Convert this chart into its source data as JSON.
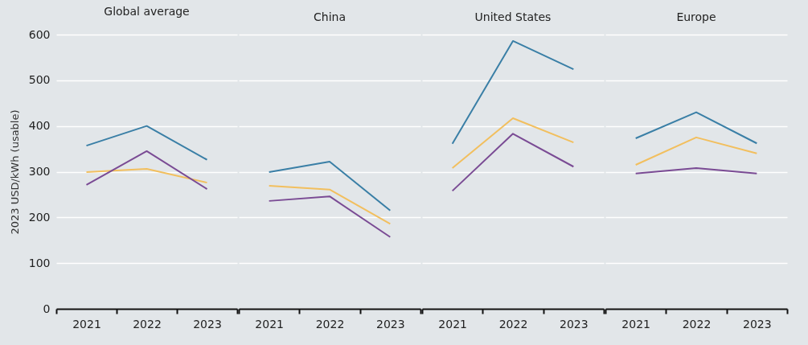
{
  "chart_data": [
    {
      "type": "line",
      "title": "Global average",
      "ylabel": "2023 USD/kWh (usable)",
      "categories": [
        "2021",
        "2022",
        "2023"
      ],
      "ylim": [
        0,
        600
      ],
      "yticks": [
        0,
        100,
        200,
        300,
        400,
        500,
        600
      ],
      "grid": "y",
      "line_style": "solid",
      "series": [
        {
          "color": "#3a7fa6",
          "values": [
            357,
            400,
            326
          ]
        },
        {
          "color": "#f2bf5e",
          "values": [
            299,
            306,
            276
          ]
        },
        {
          "color": "#7a4b94",
          "values": [
            271,
            345,
            262
          ]
        }
      ]
    },
    {
      "type": "line",
      "title": "China",
      "categories": [
        "2021",
        "2022",
        "2023"
      ],
      "ylim": [
        0,
        600
      ],
      "yticks": [
        0,
        100,
        200,
        300,
        400,
        500,
        600
      ],
      "grid": "y",
      "tick_labels": "x",
      "line_style": "solid",
      "series": [
        {
          "color": "#3a7fa6",
          "values": [
            299,
            322,
            215
          ]
        },
        {
          "color": "#f2bf5e",
          "values": [
            269,
            261,
            186
          ]
        },
        {
          "color": "#7a4b94",
          "values": [
            236,
            246,
            157
          ]
        }
      ]
    },
    {
      "type": "line",
      "title": "United States",
      "categories": [
        "2021",
        "2022",
        "2023"
      ],
      "ylim": [
        0,
        600
      ],
      "yticks": [
        0,
        100,
        200,
        300,
        400,
        500,
        600
      ],
      "grid": "y",
      "tick_labels": "x",
      "line_style": "solid",
      "series": [
        {
          "color": "#3a7fa6",
          "values": [
            361,
            586,
            524
          ]
        },
        {
          "color": "#f2bf5e",
          "values": [
            308,
            417,
            364
          ]
        },
        {
          "color": "#7a4b94",
          "values": [
            258,
            383,
            311
          ]
        }
      ]
    },
    {
      "type": "line",
      "title": "Europe",
      "categories": [
        "2021",
        "2022",
        "2023"
      ],
      "ylim": [
        0,
        600
      ],
      "yticks": [
        0,
        100,
        200,
        300,
        400,
        500,
        600
      ],
      "grid": "y",
      "tick_labels": "x",
      "line_style": "solid",
      "series": [
        {
          "color": "#3a7fa6",
          "values": [
            373,
            430,
            362
          ]
        },
        {
          "color": "#f2bf5e",
          "values": [
            315,
            375,
            340
          ]
        },
        {
          "color": "#7a4b94",
          "values": [
            296,
            308,
            296
          ]
        }
      ]
    }
  ]
}
